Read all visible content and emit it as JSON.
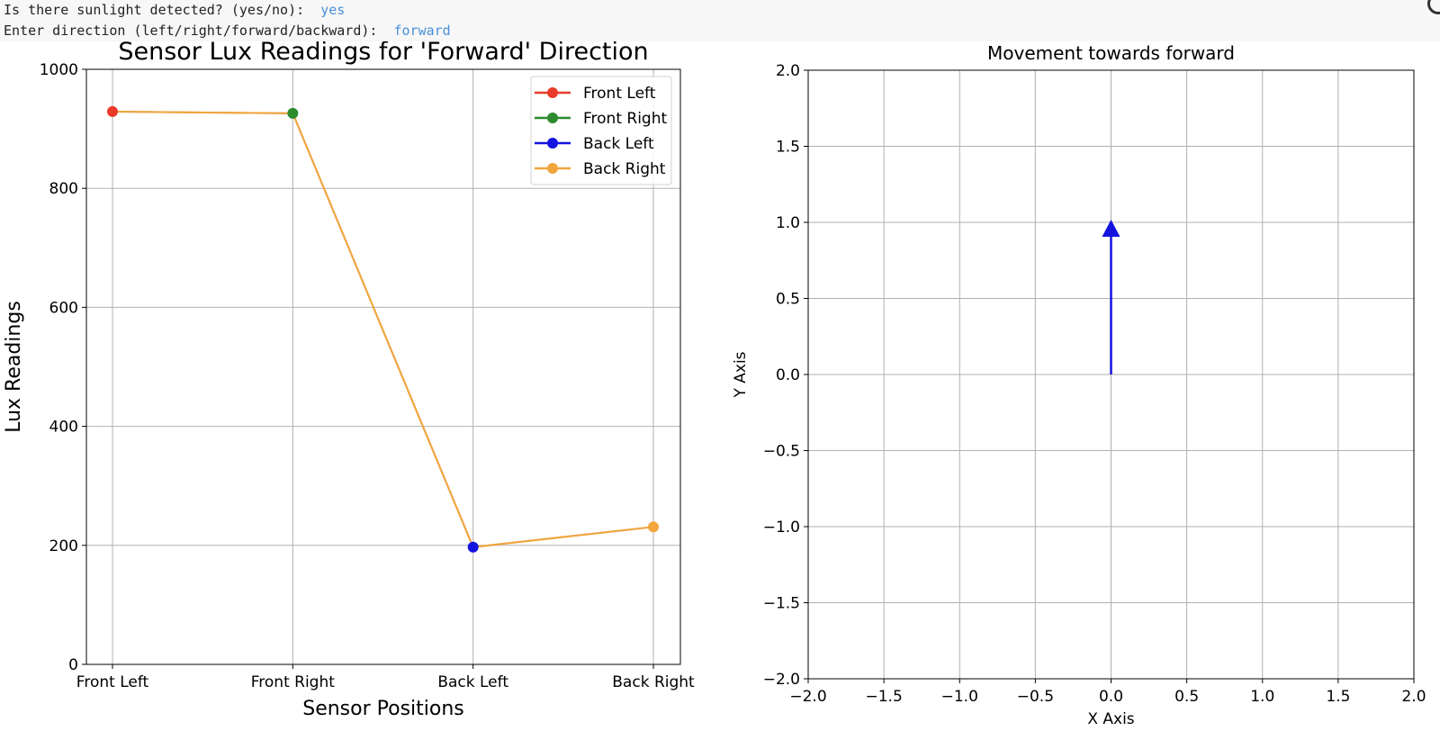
{
  "console": {
    "line1_prompt": "Is there sunlight detected? (yes/no):  ",
    "line1_answer": "yes",
    "line2_prompt": "Enter direction (left/right/forward/backward):  ",
    "line2_answer": "forward"
  },
  "chart_data": [
    {
      "type": "line",
      "title": "Sensor Lux Readings for 'Forward' Direction",
      "xlabel": "Sensor Positions",
      "ylabel": "Lux Readings",
      "categories": [
        "Front Left",
        "Front Right",
        "Back Left",
        "Back Right"
      ],
      "yticks": [
        0,
        200,
        400,
        600,
        800,
        1000
      ],
      "ylim": [
        0,
        1000
      ],
      "grid": true,
      "legend_position": "top-right",
      "line_color": "#e8a040",
      "series": [
        {
          "name": "Front Left",
          "color": "#e8392a",
          "values": [
            929,
            926,
            197,
            231
          ]
        },
        {
          "name": "Front Right",
          "color": "#2e8b2e",
          "values": [
            929,
            926,
            197,
            231
          ]
        },
        {
          "name": "Back Left",
          "color": "#1414e0",
          "values": [
            929,
            926,
            197,
            231
          ]
        },
        {
          "name": "Back Right",
          "color": "#f2a53c",
          "values": [
            929,
            926,
            197,
            231
          ]
        }
      ],
      "markers": [
        {
          "category": "Front Left",
          "value": 929,
          "color": "#e8392a"
        },
        {
          "category": "Front Right",
          "value": 926,
          "color": "#2e8b2e"
        },
        {
          "category": "Back Left",
          "value": 197,
          "color": "#1414e0"
        },
        {
          "category": "Back Right",
          "value": 231,
          "color": "#f2a53c"
        }
      ]
    },
    {
      "type": "vector",
      "title": "Movement towards forward",
      "xlabel": "X Axis",
      "ylabel": "Y Axis",
      "xlim": [
        -2.0,
        2.0
      ],
      "ylim": [
        -2.0,
        2.0
      ],
      "xticks": [
        -2.0,
        -1.5,
        -1.0,
        -0.5,
        0.0,
        0.5,
        1.0,
        1.5,
        2.0
      ],
      "yticks": [
        -2.0,
        -1.5,
        -1.0,
        -0.5,
        0.0,
        0.5,
        1.0,
        1.5,
        2.0
      ],
      "xtick_labels": [
        "−2.0",
        "−1.5",
        "−1.0",
        "−0.5",
        "0.0",
        "0.5",
        "1.0",
        "1.5",
        "2.0"
      ],
      "ytick_labels": [
        "−2.0",
        "−1.5",
        "−1.0",
        "−0.5",
        "0.0",
        "0.5",
        "1.0",
        "1.5",
        "2.0"
      ],
      "grid": true,
      "arrow": {
        "x0": 0,
        "y0": 0,
        "x1": 0,
        "y1": 1.0,
        "color": "#1414e0"
      }
    }
  ]
}
